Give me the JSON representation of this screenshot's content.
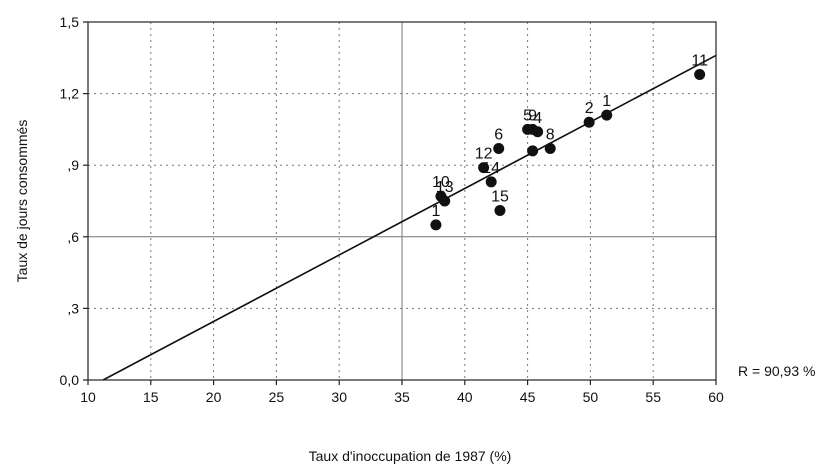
{
  "chart_data": {
    "type": "scatter",
    "title": "",
    "xlabel": "Taux d'inoccupation de 1987 (%)",
    "ylabel": "Taux de jours consommés",
    "xlim": [
      10,
      60
    ],
    "ylim": [
      0.0,
      1.5
    ],
    "x_ticks": [
      10,
      15,
      20,
      25,
      30,
      35,
      40,
      45,
      50,
      55,
      60
    ],
    "x_tick_labels": [
      "10",
      "15",
      "20",
      "25",
      "30",
      "35",
      "40",
      "45",
      "50",
      "55",
      "60"
    ],
    "y_ticks": [
      0.0,
      0.3,
      0.6,
      0.9,
      1.2,
      1.5
    ],
    "y_tick_labels": [
      "0,0",
      ",3",
      ",6",
      ",9",
      "1,2",
      "1,5"
    ],
    "grid": true,
    "grid_solid_x": [
      35
    ],
    "grid_solid_y": [
      0.6
    ],
    "points": [
      {
        "label": "11",
        "x": 58.7,
        "y": 1.28
      },
      {
        "label": "1",
        "x": 51.3,
        "y": 1.11
      },
      {
        "label": "2",
        "x": 49.9,
        "y": 1.08
      },
      {
        "label": "5",
        "x": 45.0,
        "y": 1.05
      },
      {
        "label": "4",
        "x": 45.8,
        "y": 1.04
      },
      {
        "label": "9",
        "x": 45.4,
        "y": 1.05
      },
      {
        "label": "8",
        "x": 46.8,
        "y": 0.97
      },
      {
        "label": "",
        "x": 45.4,
        "y": 0.96
      },
      {
        "label": "6",
        "x": 42.7,
        "y": 0.97
      },
      {
        "label": "12",
        "x": 41.5,
        "y": 0.89
      },
      {
        "label": "14",
        "x": 42.1,
        "y": 0.83
      },
      {
        "label": "15",
        "x": 42.8,
        "y": 0.71
      },
      {
        "label": "10",
        "x": 38.1,
        "y": 0.77
      },
      {
        "label": "13",
        "x": 38.4,
        "y": 0.75
      },
      {
        "label": "1",
        "x": 37.7,
        "y": 0.65
      }
    ],
    "fit_line": {
      "x": [
        11.2,
        60.0
      ],
      "y": [
        0.0,
        1.36
      ]
    },
    "annotation": "R = 90,93 %"
  }
}
